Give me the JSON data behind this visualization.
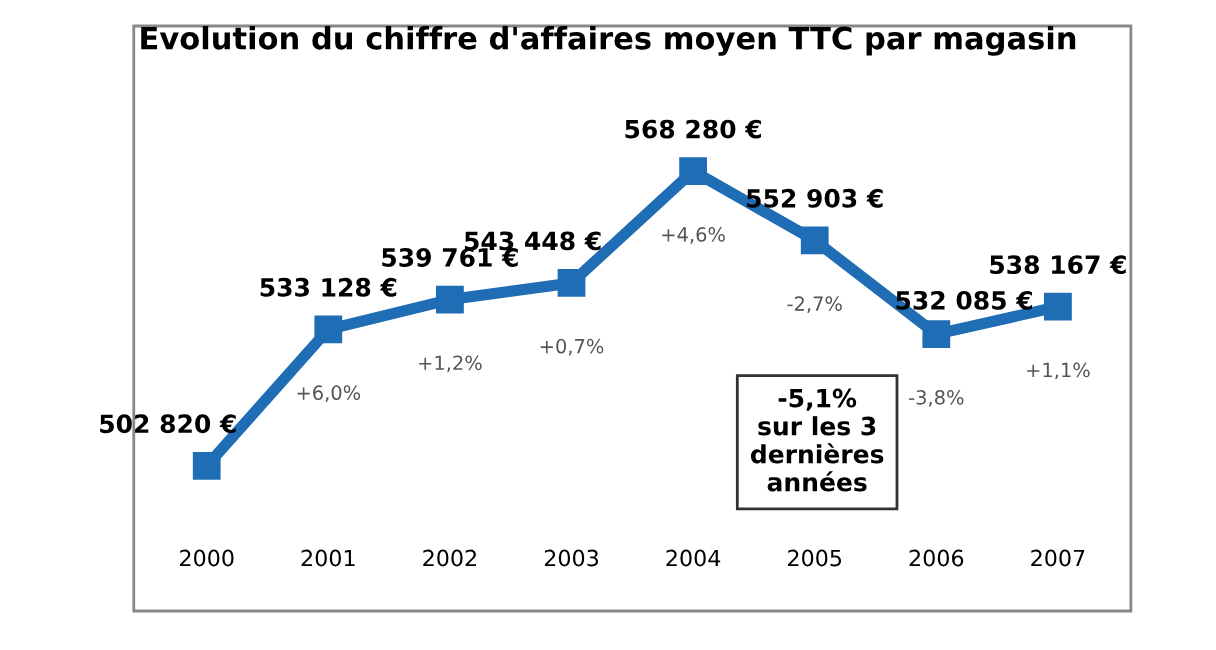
{
  "chart_data": {
    "type": "line",
    "title": "Evolution du chiffre d'affaires moyen TTC par magasin",
    "categories": [
      "2000",
      "2001",
      "2002",
      "2003",
      "2004",
      "2005",
      "2006",
      "2007"
    ],
    "values": [
      502820,
      533128,
      539761,
      543448,
      568280,
      552903,
      532085,
      538167
    ],
    "value_labels": [
      "502 820 €",
      "533 128 €",
      "539 761 €",
      "543 448 €",
      "568 280 €",
      "552 903 €",
      "532 085 €",
      "538 167 €"
    ],
    "color": "#1f6db5",
    "marker": "square",
    "line_style": "solid",
    "grid": false,
    "legend": false,
    "tick_labels": "x",
    "annotations": [
      "+6,0%",
      "+1,2%",
      "+0,7%",
      "+4,6%",
      "-2,7%",
      "-3,8%",
      "+1,1%",
      "-5,1%\nsur les 3\ndernières\nannées"
    ]
  }
}
